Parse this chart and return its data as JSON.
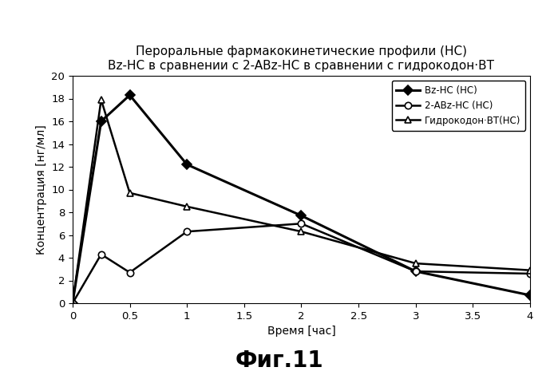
{
  "title_line1": "Пероральные фармакокинетические профили (НС)",
  "title_line2": "Bz-НС в сравнении с 2-ABz-НС в сравнении с гидрокодон·ВТ",
  "xlabel": "Время [час]",
  "ylabel": "Концентрация [нг/мл]",
  "fig_label": "Фиг.11",
  "xlim": [
    0,
    4
  ],
  "ylim": [
    0,
    20
  ],
  "xticks": [
    0,
    0.5,
    1.0,
    1.5,
    2.0,
    2.5,
    3.0,
    3.5,
    4.0
  ],
  "xticklabels": [
    "0",
    "0.5",
    "1",
    "1.5",
    "2",
    "2.5",
    "3",
    "3.5",
    "4"
  ],
  "yticks": [
    0,
    2,
    4,
    6,
    8,
    10,
    12,
    14,
    16,
    18,
    20
  ],
  "yticklabels": [
    "0",
    "2",
    "4",
    "6",
    "8",
    "10",
    "12",
    "14",
    "16",
    "18",
    "20"
  ],
  "series": [
    {
      "label": "Bz-НС (НС)",
      "x": [
        0,
        0.25,
        0.5,
        1.0,
        2.0,
        3.0,
        4.0
      ],
      "y": [
        0,
        16.0,
        18.3,
        12.2,
        7.7,
        2.8,
        0.7
      ],
      "color": "#000000",
      "linewidth": 2.2,
      "marker": "D",
      "markersize": 6,
      "markerfacecolor": "#000000",
      "linestyle": "-"
    },
    {
      "label": "2-ABz-НС (НС)",
      "x": [
        0,
        0.25,
        0.5,
        1.0,
        2.0,
        3.0,
        4.0
      ],
      "y": [
        0,
        4.3,
        2.7,
        6.3,
        7.0,
        2.8,
        2.6
      ],
      "color": "#000000",
      "linewidth": 1.8,
      "marker": "o",
      "markersize": 6,
      "markerfacecolor": "#ffffff",
      "linestyle": "-"
    },
    {
      "label": "Гидрокодон·ВТ(НС)",
      "x": [
        0,
        0.25,
        0.5,
        1.0,
        2.0,
        3.0,
        4.0
      ],
      "y": [
        0,
        17.9,
        9.7,
        8.5,
        6.3,
        3.5,
        2.9
      ],
      "color": "#000000",
      "linewidth": 1.8,
      "marker": "^",
      "markersize": 6,
      "markerfacecolor": "#ffffff",
      "linestyle": "-"
    }
  ],
  "background_color": "#ffffff",
  "legend_fontsize": 8.5,
  "title_fontsize": 11,
  "axis_label_fontsize": 10,
  "tick_fontsize": 9.5,
  "fig_label_fontsize": 20
}
